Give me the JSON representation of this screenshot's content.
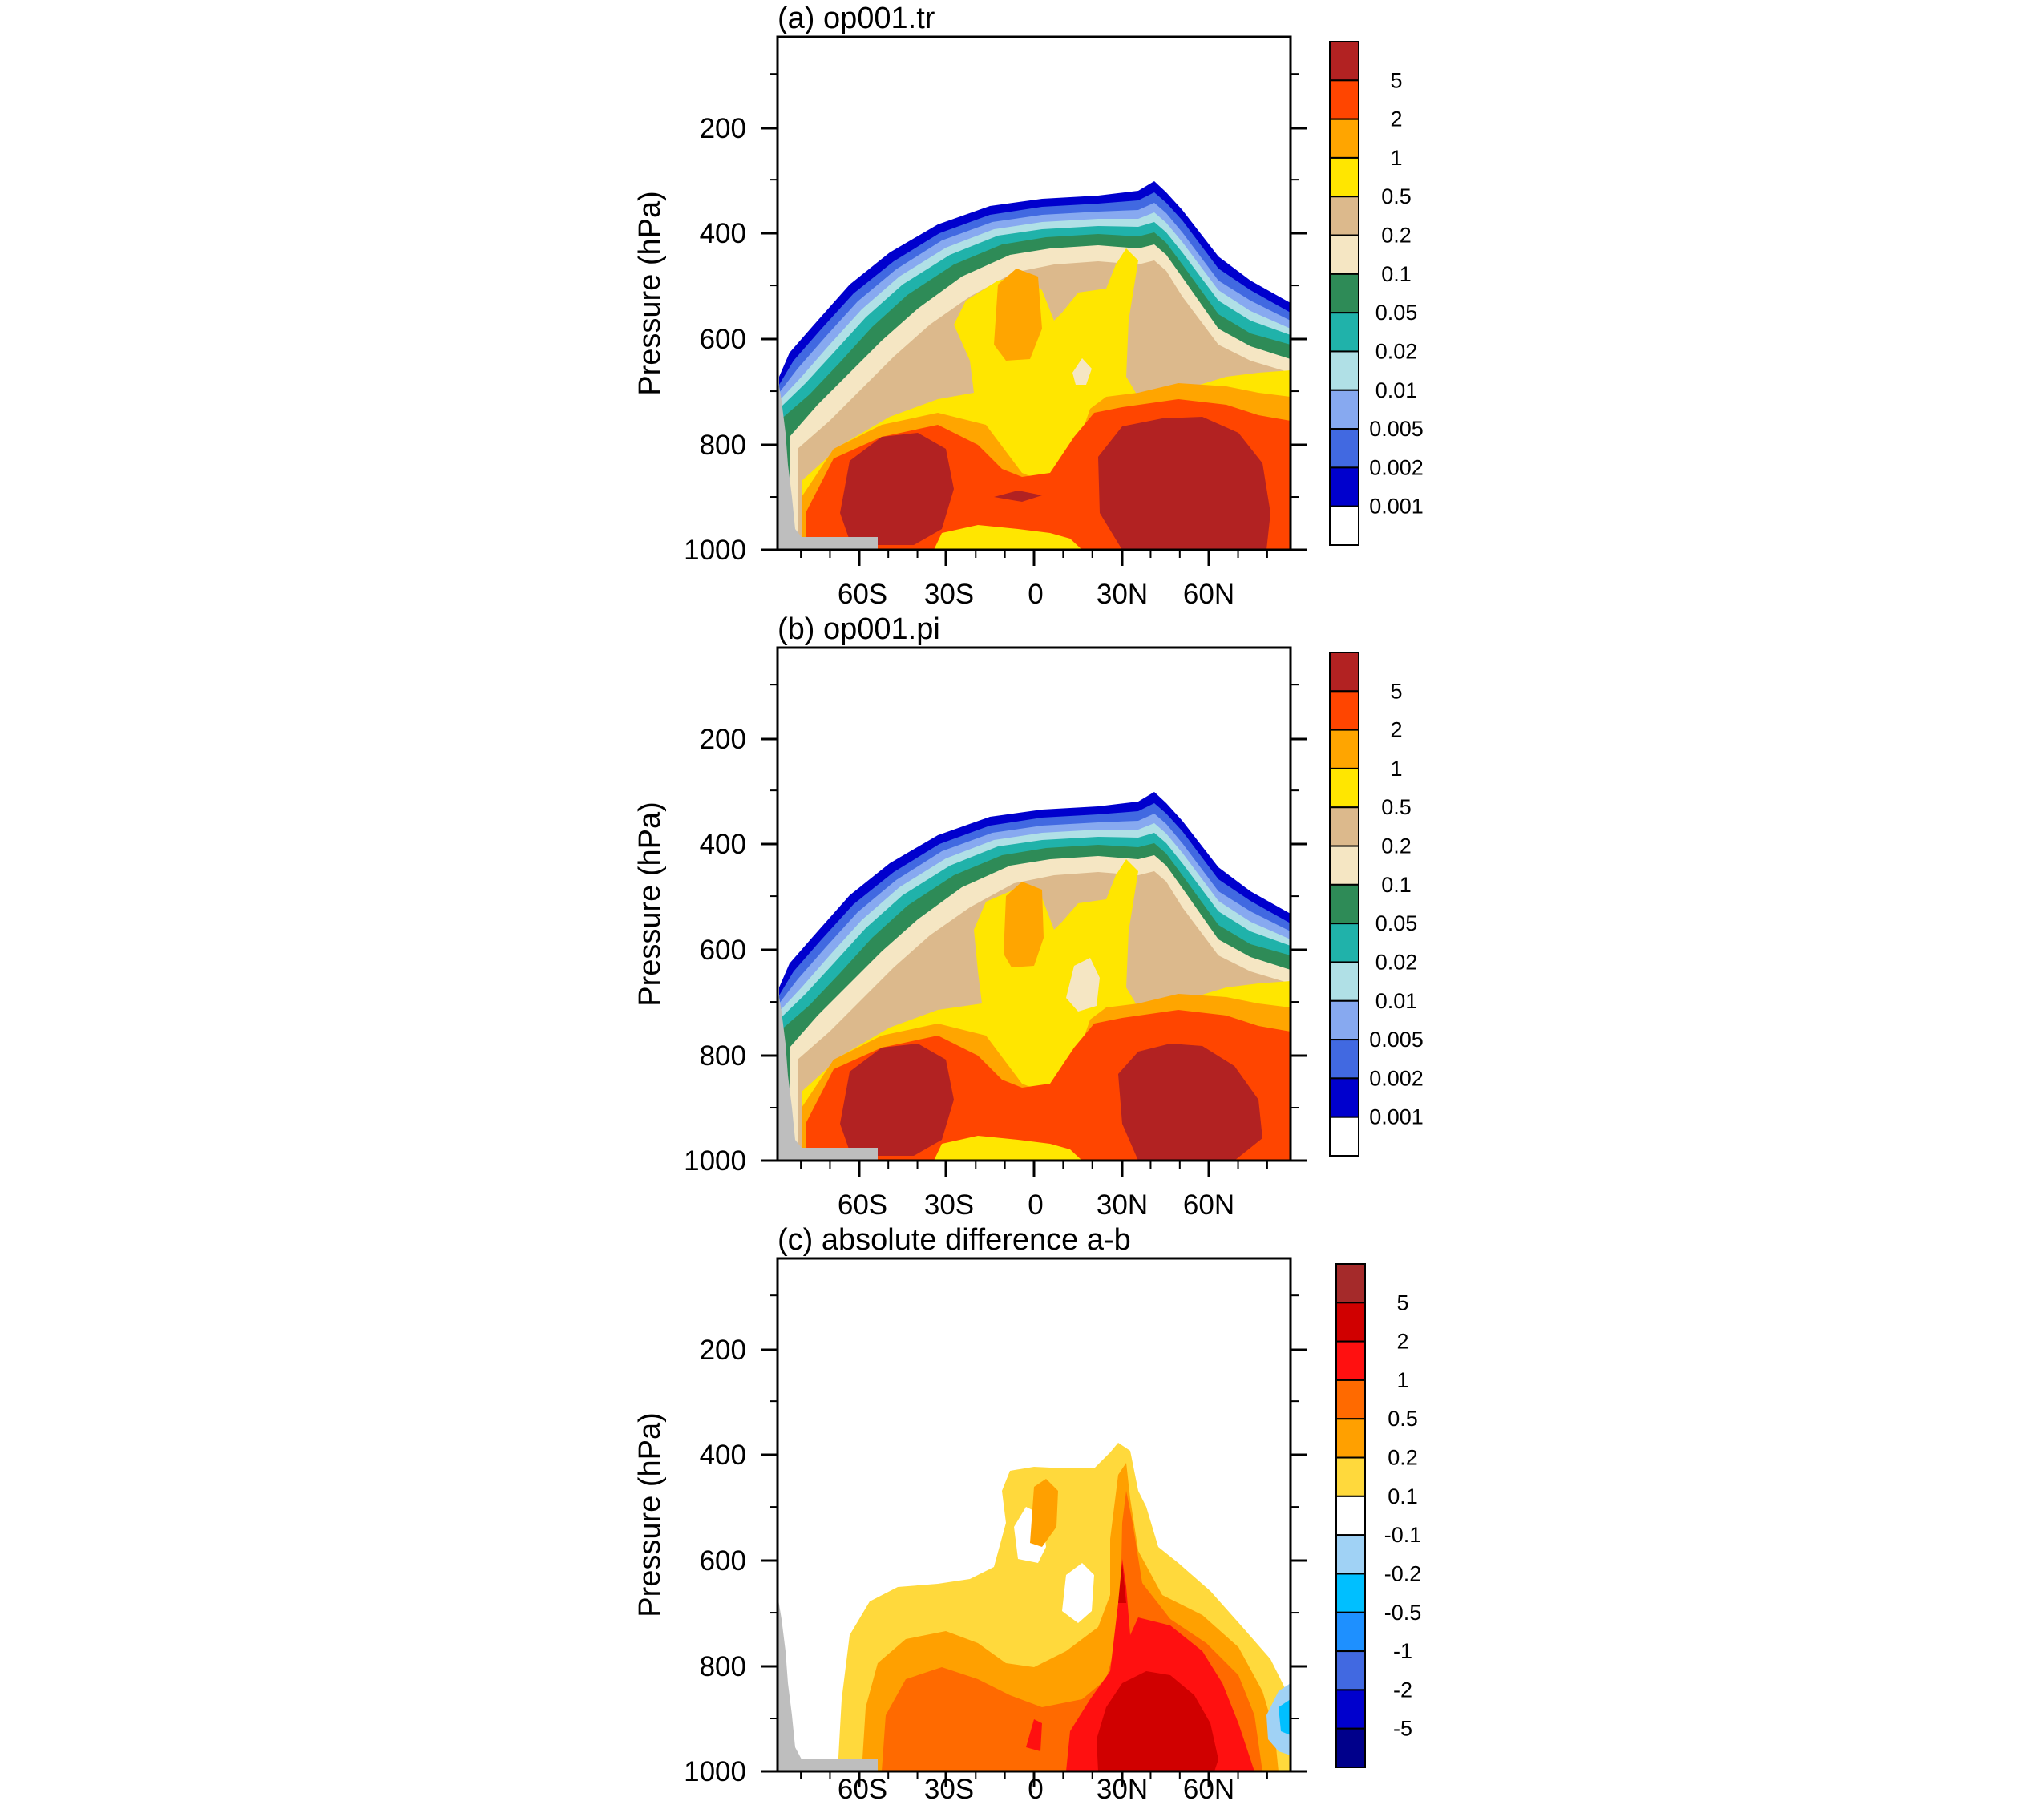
{
  "chart_data": [
    {
      "type": "heatmap",
      "title": "(a) op001.tr",
      "xlabel": "",
      "ylabel": "Pressure (hPa)",
      "xticks": [
        "60S",
        "30S",
        "0",
        "30N",
        "60N"
      ],
      "xtick_values": [
        -60,
        -30,
        0,
        30,
        60
      ],
      "xlim": [
        -88,
        88
      ],
      "ylim": [
        1000,
        30
      ],
      "yticks": [
        200,
        400,
        600,
        800,
        1000
      ],
      "colorbar": {
        "labels": [
          "5",
          "2",
          "1",
          "0.5",
          "0.2",
          "0.1",
          "0.05",
          "0.02",
          "0.01",
          "0.005",
          "0.002",
          "0.001"
        ],
        "colors": [
          "#b22222",
          "#ff4500",
          "#ffa500",
          "#ffe600",
          "#dcb98c",
          "#f5e6c3",
          "#2e8b57",
          "#20b2aa",
          "#b0e0e6",
          "#87a9f0",
          "#4169e1",
          "#0000cd",
          "#ffffff"
        ]
      },
      "topography_color": "#bebebe"
    },
    {
      "type": "heatmap",
      "title": "(b) op001.pi",
      "xlabel": "",
      "ylabel": "Pressure (hPa)",
      "xticks": [
        "60S",
        "30S",
        "0",
        "30N",
        "60N"
      ],
      "xtick_values": [
        -60,
        -30,
        0,
        30,
        60
      ],
      "xlim": [
        -88,
        88
      ],
      "ylim": [
        1000,
        30
      ],
      "yticks": [
        200,
        400,
        600,
        800,
        1000
      ],
      "colorbar": {
        "labels": [
          "5",
          "2",
          "1",
          "0.5",
          "0.2",
          "0.1",
          "0.05",
          "0.02",
          "0.01",
          "0.005",
          "0.002",
          "0.001"
        ],
        "colors": [
          "#b22222",
          "#ff4500",
          "#ffa500",
          "#ffe600",
          "#dcb98c",
          "#f5e6c3",
          "#2e8b57",
          "#20b2aa",
          "#b0e0e6",
          "#87a9f0",
          "#4169e1",
          "#0000cd",
          "#ffffff"
        ]
      },
      "topography_color": "#bebebe"
    },
    {
      "type": "heatmap",
      "title": "(c) absolute difference a-b",
      "xlabel": "",
      "ylabel": "Pressure (hPa)",
      "xticks": [
        "60S",
        "30S",
        "0",
        "30N",
        "60N"
      ],
      "xtick_values": [
        -60,
        -30,
        0,
        30,
        60
      ],
      "xlim": [
        -88,
        88
      ],
      "ylim": [
        1000,
        30
      ],
      "yticks": [
        200,
        400,
        600,
        800,
        1000
      ],
      "colorbar": {
        "labels": [
          "5",
          "2",
          "1",
          "0.5",
          "0.2",
          "0.1",
          "-0.1",
          "-0.2",
          "-0.5",
          "-1",
          "-2",
          "-5"
        ],
        "colors": [
          "#a52a2a",
          "#d00000",
          "#ff1010",
          "#ff6a00",
          "#ffa000",
          "#ffd93c",
          "#ffffff",
          "#a0d2f5",
          "#00bfff",
          "#1e90ff",
          "#4169e1",
          "#0000cd",
          "#00008b"
        ]
      },
      "topography_color": "#bebebe"
    }
  ]
}
